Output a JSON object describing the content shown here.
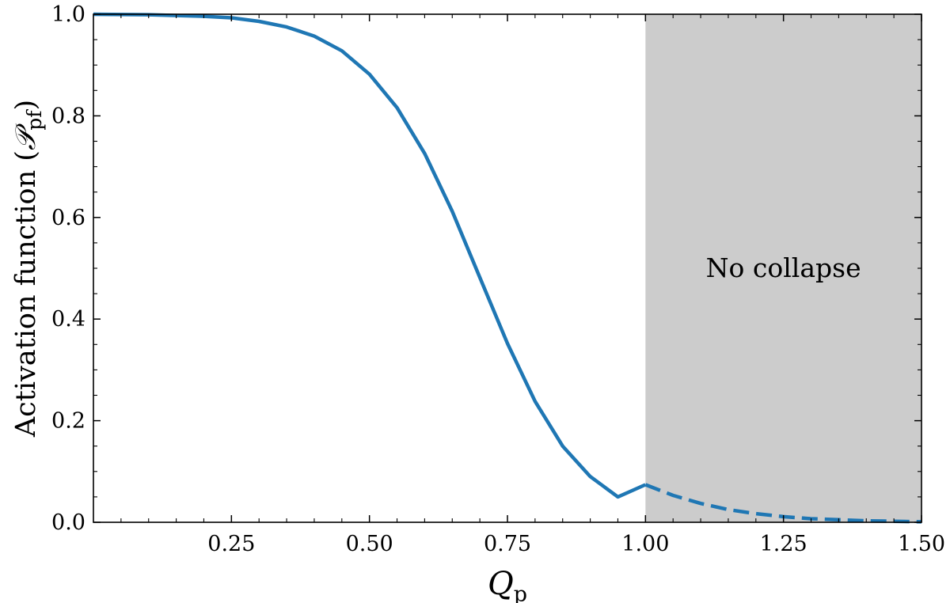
{
  "chart_data": {
    "type": "line",
    "xlim": [
      0,
      1.5
    ],
    "ylim": [
      0.0,
      1.0
    ],
    "x_ticks": [
      0.25,
      0.5,
      0.75,
      1.0,
      1.25,
      1.5
    ],
    "x_tick_labels": [
      "0.25",
      "0.50",
      "0.75",
      "1.00",
      "1.25",
      "1.50"
    ],
    "y_ticks": [
      0.0,
      0.2,
      0.4,
      0.6,
      0.8,
      1.0
    ],
    "y_tick_labels": [
      "0.0",
      "0.2",
      "0.4",
      "0.6",
      "0.8",
      "1.0"
    ],
    "xlabel": {
      "main": "Q",
      "sub": "p"
    },
    "ylabel": {
      "main": "Activation function (",
      "symbol": "𝒫",
      "sub": "pf",
      "close": ")"
    },
    "grid": false,
    "line_color": "#1f77b4",
    "shaded_region": {
      "x_from": 1.0,
      "x_to": 1.5,
      "color": "#cccccc",
      "label": "No collapse"
    },
    "series": [
      {
        "style": "solid",
        "x": [
          0.0,
          0.1,
          0.2,
          0.25,
          0.3,
          0.35,
          0.4,
          0.45,
          0.5,
          0.55,
          0.6,
          0.65,
          0.7,
          0.75,
          0.8,
          0.85,
          0.9,
          0.95,
          1.0
        ],
        "y": [
          1.0,
          0.999,
          0.996,
          0.993,
          0.986,
          0.975,
          0.957,
          0.928,
          0.882,
          0.816,
          0.726,
          0.612,
          0.482,
          0.352,
          0.238,
          0.15,
          0.09,
          0.05,
          0.074
        ]
      },
      {
        "style": "dashed",
        "x": [
          1.0,
          1.05,
          1.1,
          1.15,
          1.2,
          1.25,
          1.3,
          1.35,
          1.4,
          1.45,
          1.5
        ],
        "y": [
          0.074,
          0.053,
          0.037,
          0.025,
          0.017,
          0.011,
          0.007,
          0.005,
          0.003,
          0.002,
          0.001
        ]
      }
    ]
  }
}
